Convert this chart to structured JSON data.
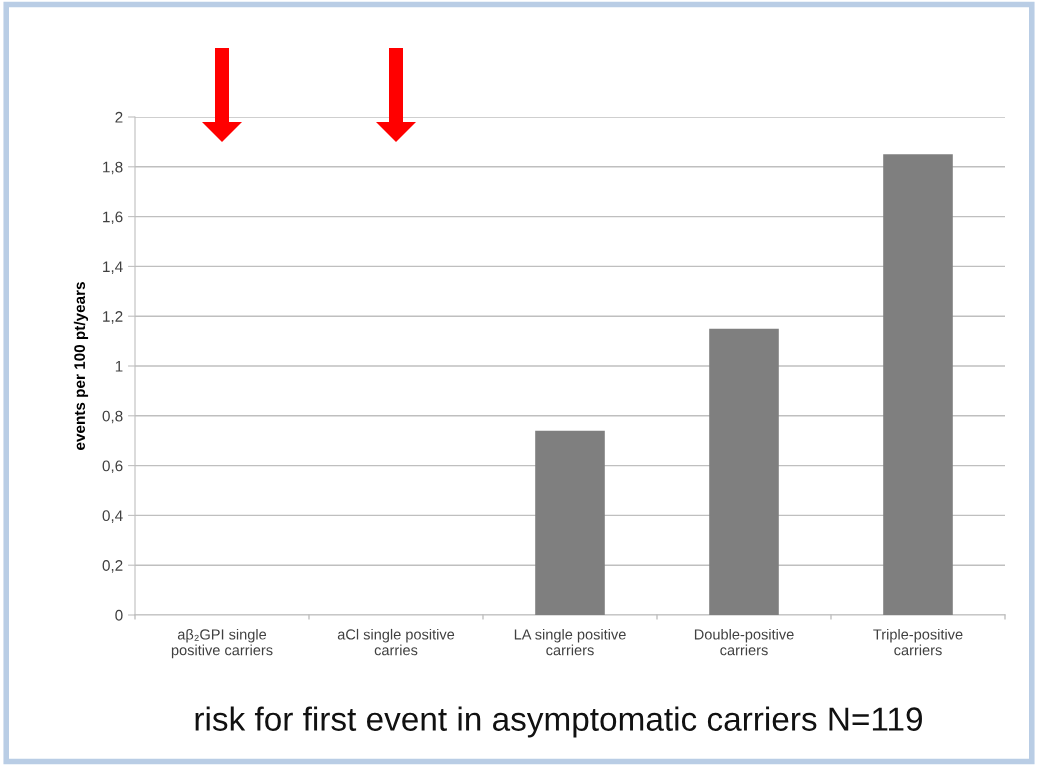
{
  "chart_data": {
    "type": "bar",
    "title": "risk for first event in asymptomatic carriers N=119",
    "ylabel": "events per 100 pt/years",
    "categories": [
      "aβ₂GPI single\npositive carriers",
      "aCl single positive\ncarries",
      "LA single positive\ncarriers",
      "Double-positive\ncarriers",
      "Triple-positive\ncarriers"
    ],
    "values": [
      0,
      0,
      0.74,
      1.15,
      1.85
    ],
    "color": "#7f7f7f",
    "ylim": [
      0,
      2
    ],
    "yticks": [
      0,
      {
        "value": 0.2,
        "label": "0,2"
      },
      {
        "value": 0.4,
        "label": "0,4"
      },
      {
        "value": 0.6,
        "label": "0,6"
      },
      {
        "value": 0.8,
        "label": "0,8"
      },
      1,
      {
        "value": 1.2,
        "label": "1,2"
      },
      {
        "value": 1.4,
        "label": "1,4"
      },
      {
        "value": 1.6,
        "label": "1,6"
      },
      {
        "value": 1.8,
        "label": "1,8"
      },
      2
    ],
    "grid": "y",
    "legend": false
  }
}
